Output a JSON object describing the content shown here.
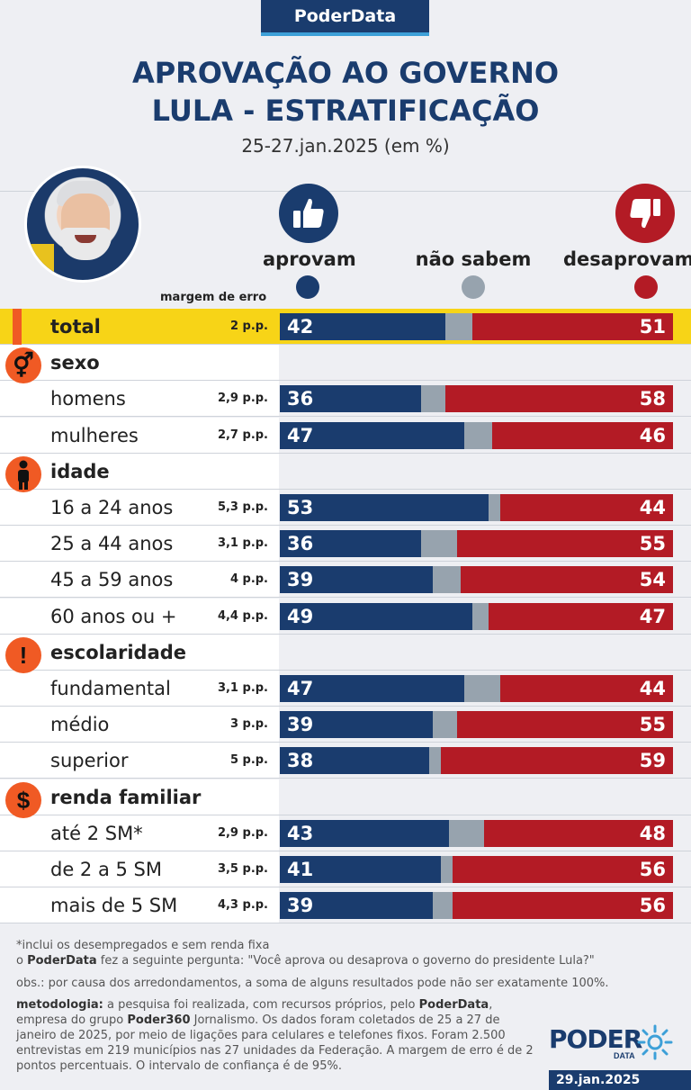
{
  "brand": "PoderData",
  "title_line1": "APROVAÇÃO AO GOVERNO",
  "title_line2": "LULA - ESTRATIFICAÇÃO",
  "subtitle": "25-27.jan.2025 (em %)",
  "legend": {
    "approve": "aprovam",
    "unsure": "não sabem",
    "disapprove": "desaprovam",
    "margin_header": "margem de erro"
  },
  "colors": {
    "approve": "#1a3c6e",
    "unsure": "#97a3ae",
    "disapprove": "#b31b25",
    "highlight": "#f7d417",
    "accent": "#f05a24"
  },
  "chart_data": {
    "type": "bar",
    "orientation": "horizontal-stacked",
    "title": "APROVAÇÃO AO GOVERNO LULA - ESTRATIFICAÇÃO",
    "subtitle": "25-27.jan.2025 (em %)",
    "series": [
      {
        "name": "aprovam"
      },
      {
        "name": "não sabem"
      },
      {
        "name": "desaprovam"
      }
    ],
    "rows": [
      {
        "kind": "total",
        "label": "total",
        "moe": "2 p.p.",
        "approve": 42,
        "disapprove": 51
      },
      {
        "kind": "section",
        "label": "sexo",
        "icon": "gender-icon"
      },
      {
        "kind": "data",
        "label": "homens",
        "moe": "2,9 p.p.",
        "approve": 36,
        "disapprove": 58
      },
      {
        "kind": "data",
        "label": "mulheres",
        "moe": "2,7 p.p.",
        "approve": 47,
        "disapprove": 46
      },
      {
        "kind": "section",
        "label": "idade",
        "icon": "person-icon"
      },
      {
        "kind": "data",
        "label": "16 a 24 anos",
        "moe": "5,3 p.p.",
        "approve": 53,
        "disapprove": 44
      },
      {
        "kind": "data",
        "label": "25 a 44 anos",
        "moe": "3,1 p.p.",
        "approve": 36,
        "disapprove": 55
      },
      {
        "kind": "data",
        "label": "45 a 59 anos",
        "moe": "4 p.p.",
        "approve": 39,
        "disapprove": 54
      },
      {
        "kind": "data",
        "label": "60 anos ou +",
        "moe": "4,4 p.p.",
        "approve": 49,
        "disapprove": 47
      },
      {
        "kind": "section",
        "label": "escolaridade",
        "icon": "exclamation-icon"
      },
      {
        "kind": "data",
        "label": "fundamental",
        "moe": "3,1 p.p.",
        "approve": 47,
        "disapprove": 44
      },
      {
        "kind": "data",
        "label": "médio",
        "moe": "3 p.p.",
        "approve": 39,
        "disapprove": 55
      },
      {
        "kind": "data",
        "label": "superior",
        "moe": "5 p.p.",
        "approve": 38,
        "disapprove": 59
      },
      {
        "kind": "section",
        "label": "renda familiar",
        "icon": "dollar-icon"
      },
      {
        "kind": "data",
        "label": "até 2 SM*",
        "moe": "2,9 p.p.",
        "approve": 43,
        "disapprove": 48
      },
      {
        "kind": "data",
        "label": "de 2 a 5 SM",
        "moe": "3,5 p.p.",
        "approve": 41,
        "disapprove": 56
      },
      {
        "kind": "data",
        "label": "mais de 5 SM",
        "moe": "4,3 p.p.",
        "approve": 39,
        "disapprove": 56
      }
    ]
  },
  "footnotes": {
    "note1": "*inclui os desempregados e sem renda fixa",
    "question_prefix": "o ",
    "question_brand": "PoderData",
    "question_text": " fez a seguinte pergunta: \"Você aprova ou desaprova o governo do presidente Lula?\"",
    "obs": "obs.: por causa dos arredondamentos, a soma de alguns resultados pode não ser exatamente 100%.",
    "method_label": "metodologia:",
    "method_text1": " a pesquisa foi realizada, com recursos próprios, pelo ",
    "method_brand1": "PoderData",
    "method_text2": ", empresa do grupo ",
    "method_brand2": "Poder360",
    "method_text3": " Jornalismo. Os dados foram coletados de 25 a 27 de janeiro de 2025, por meio de ligações para celulares e telefones fixos. Foram 2.500 entrevistas em 219 municípios nas 27 unidades da Federação. A margem de erro é de 2 pontos percentuais. O intervalo de confiança é de 95%."
  },
  "logo": {
    "word": "PODER",
    "sub": "DATA"
  },
  "publish_date": "29.jan.2025"
}
